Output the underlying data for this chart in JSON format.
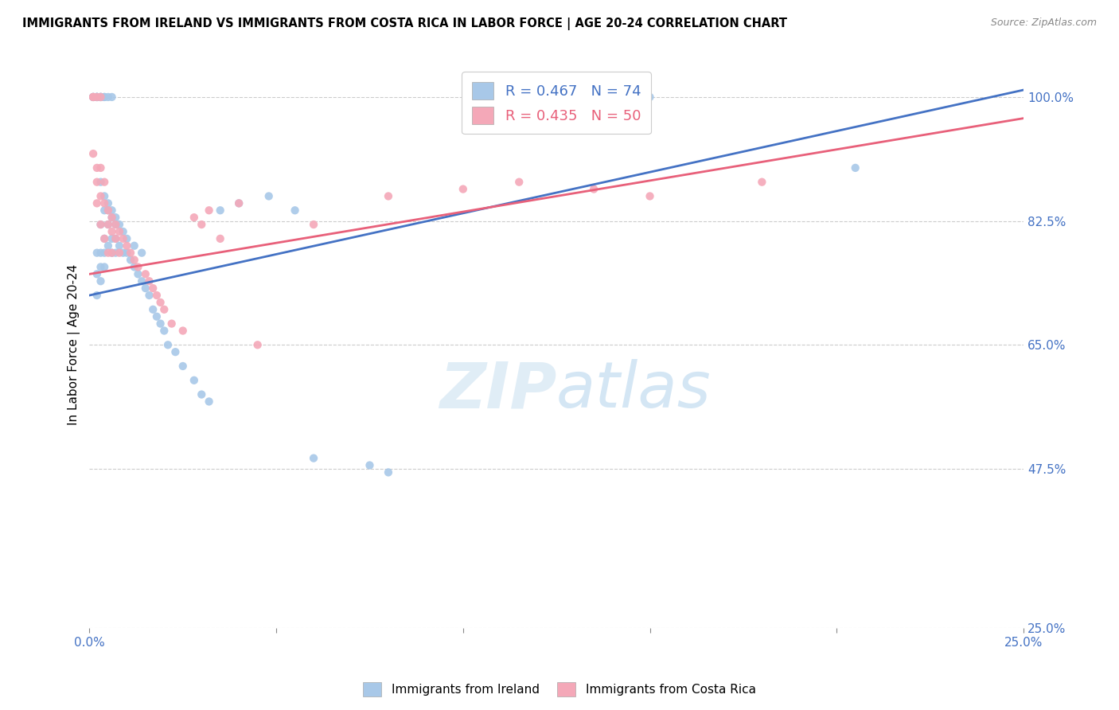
{
  "title": "IMMIGRANTS FROM IRELAND VS IMMIGRANTS FROM COSTA RICA IN LABOR FORCE | AGE 20-24 CORRELATION CHART",
  "source": "Source: ZipAtlas.com",
  "ylabel": "In Labor Force | Age 20-24",
  "xlim": [
    0.0,
    0.25
  ],
  "ylim": [
    0.25,
    1.05
  ],
  "ireland_color": "#a8c8e8",
  "costa_rica_color": "#f4a8b8",
  "ireland_line_color": "#4472c4",
  "costa_rica_line_color": "#e8607a",
  "ireland_R": 0.467,
  "ireland_N": 74,
  "costa_rica_R": 0.435,
  "costa_rica_N": 50,
  "tick_color": "#4472c4",
  "watermark_color": "#d0e8f4",
  "ytick_vals": [
    0.25,
    0.475,
    0.65,
    0.825,
    1.0
  ],
  "ytick_labels": [
    "25.0%",
    "47.5%",
    "65.0%",
    "82.5%",
    "100.0%"
  ],
  "xtick_vals": [
    0.0,
    0.05,
    0.1,
    0.15,
    0.2,
    0.25
  ],
  "xtick_labels": [
    "0.0%",
    "",
    "",
    "",
    "",
    "25.0%"
  ],
  "ireland_x": [
    0.001,
    0.001,
    0.001,
    0.002,
    0.002,
    0.002,
    0.002,
    0.002,
    0.002,
    0.002,
    0.002,
    0.003,
    0.003,
    0.003,
    0.003,
    0.003,
    0.003,
    0.003,
    0.003,
    0.003,
    0.004,
    0.004,
    0.004,
    0.004,
    0.004,
    0.004,
    0.004,
    0.005,
    0.005,
    0.005,
    0.005,
    0.005,
    0.006,
    0.006,
    0.006,
    0.006,
    0.006,
    0.007,
    0.007,
    0.007,
    0.007,
    0.008,
    0.008,
    0.009,
    0.009,
    0.01,
    0.01,
    0.011,
    0.012,
    0.012,
    0.013,
    0.014,
    0.014,
    0.015,
    0.016,
    0.017,
    0.018,
    0.019,
    0.02,
    0.021,
    0.023,
    0.025,
    0.028,
    0.03,
    0.032,
    0.035,
    0.04,
    0.048,
    0.055,
    0.06,
    0.075,
    0.08,
    0.15,
    0.205
  ],
  "ireland_y": [
    1.0,
    1.0,
    1.0,
    1.0,
    1.0,
    1.0,
    1.0,
    1.0,
    0.78,
    0.75,
    0.72,
    1.0,
    1.0,
    1.0,
    1.0,
    0.88,
    0.82,
    0.78,
    0.76,
    0.74,
    1.0,
    1.0,
    0.86,
    0.84,
    0.8,
    0.78,
    0.76,
    1.0,
    0.85,
    0.84,
    0.82,
    0.79,
    1.0,
    0.84,
    0.83,
    0.8,
    0.78,
    0.83,
    0.82,
    0.8,
    0.78,
    0.82,
    0.79,
    0.81,
    0.78,
    0.8,
    0.78,
    0.77,
    0.79,
    0.76,
    0.75,
    0.78,
    0.74,
    0.73,
    0.72,
    0.7,
    0.69,
    0.68,
    0.67,
    0.65,
    0.64,
    0.62,
    0.6,
    0.58,
    0.57,
    0.84,
    0.85,
    0.86,
    0.84,
    0.49,
    0.48,
    0.47,
    1.0,
    0.9
  ],
  "costa_rica_x": [
    0.001,
    0.001,
    0.001,
    0.002,
    0.002,
    0.002,
    0.002,
    0.003,
    0.003,
    0.003,
    0.003,
    0.004,
    0.004,
    0.004,
    0.005,
    0.005,
    0.005,
    0.006,
    0.006,
    0.006,
    0.007,
    0.007,
    0.008,
    0.008,
    0.009,
    0.01,
    0.011,
    0.012,
    0.013,
    0.015,
    0.016,
    0.017,
    0.018,
    0.019,
    0.02,
    0.022,
    0.025,
    0.028,
    0.03,
    0.032,
    0.035,
    0.04,
    0.045,
    0.06,
    0.08,
    0.1,
    0.115,
    0.135,
    0.15,
    0.18
  ],
  "costa_rica_y": [
    1.0,
    1.0,
    0.92,
    1.0,
    0.9,
    0.88,
    0.85,
    1.0,
    0.9,
    0.86,
    0.82,
    0.88,
    0.85,
    0.8,
    0.84,
    0.82,
    0.78,
    0.83,
    0.81,
    0.78,
    0.82,
    0.8,
    0.81,
    0.78,
    0.8,
    0.79,
    0.78,
    0.77,
    0.76,
    0.75,
    0.74,
    0.73,
    0.72,
    0.71,
    0.7,
    0.68,
    0.67,
    0.83,
    0.82,
    0.84,
    0.8,
    0.85,
    0.65,
    0.82,
    0.86,
    0.87,
    0.88,
    0.87,
    0.86,
    0.88
  ]
}
